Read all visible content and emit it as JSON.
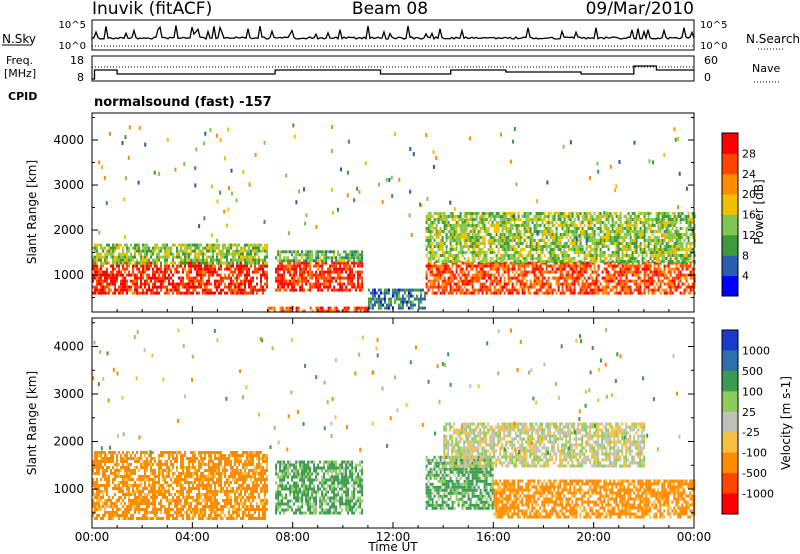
{
  "header": {
    "station": "Inuvik (fitACF)",
    "beam": "Beam 08",
    "date": "09/Mar/2010"
  },
  "sky_panel": {
    "left_label": "N.Sky",
    "right_label": "N.Search",
    "left_ticks": [
      "10^5",
      "10^0"
    ],
    "right_ticks": [
      "10^5",
      "10^0"
    ]
  },
  "freq_panel": {
    "left_label_line1": "Freq.",
    "left_label_line2": "[MHz]",
    "right_label": "Nave",
    "left_ticks": [
      "18",
      "8"
    ],
    "right_ticks": [
      "60",
      "0"
    ],
    "cpid_label": "CPID",
    "mode_text": "normalsound (fast) -157"
  },
  "x_axis": {
    "tick_labels": [
      "00:00",
      "04:00",
      "08:00",
      "12:00",
      "16:00",
      "20:00",
      "00:00"
    ],
    "title": "Time UT"
  },
  "power_panel": {
    "ylabel": "Slant Range [km]",
    "y_ticks": [
      "1000",
      "2000",
      "3000",
      "4000"
    ],
    "colorbar_title": "Power [dB]",
    "colorbar_labels": [
      "4",
      "8",
      "12",
      "16",
      "20",
      "24",
      "28"
    ],
    "colors": [
      "#0000ff",
      "#2a5db0",
      "#3c9a3c",
      "#7ec850",
      "#f0c000",
      "#ff8c00",
      "#ff4500",
      "#ff0000"
    ]
  },
  "velocity_panel": {
    "ylabel": "Slant Range [km]",
    "y_ticks": [
      "1000",
      "2000",
      "3000",
      "4000"
    ],
    "colorbar_title": "Velocity [m s-1]",
    "colorbar_labels": [
      "1000",
      "500",
      "100",
      "25",
      "-25",
      "-100",
      "-500",
      "-1000"
    ],
    "colors": [
      "#1a3acc",
      "#2e6fae",
      "#3a9a52",
      "#8ccc5a",
      "#c0c0b8",
      "#f5c040",
      "#ff8c00",
      "#ff4500",
      "#ff0000"
    ]
  },
  "chart_data": [
    {
      "type": "heatmap",
      "title": "",
      "xlabel": "Time UT",
      "ylabel": "Slant Range [km]",
      "xlim": [
        0,
        24
      ],
      "ylim": [
        180,
        4600
      ],
      "colorbar": "Power [dB]",
      "features": [
        {
          "t": [
            0.0,
            7.0
          ],
          "range": [
            600,
            1300
          ],
          "power": 28
        },
        {
          "t": [
            0.0,
            7.0
          ],
          "range": [
            1300,
            1700
          ],
          "power": 14
        },
        {
          "t": [
            7.3,
            10.8
          ],
          "range": [
            700,
            1300
          ],
          "power": 28
        },
        {
          "t": [
            7.3,
            10.8
          ],
          "range": [
            1300,
            1550
          ],
          "power": 12
        },
        {
          "t": [
            7.0,
            11.0
          ],
          "range": [
            180,
            300
          ],
          "power": 26
        },
        {
          "t": [
            11.0,
            13.3
          ],
          "range": [
            250,
            700
          ],
          "power": 8
        },
        {
          "t": [
            13.3,
            24.0
          ],
          "range": [
            600,
            1300
          ],
          "power": 26
        },
        {
          "t": [
            13.3,
            24.0
          ],
          "range": [
            1300,
            2400
          ],
          "power": 14
        }
      ]
    },
    {
      "type": "heatmap",
      "title": "",
      "xlabel": "Time UT",
      "ylabel": "Slant Range [km]",
      "xlim": [
        0,
        24
      ],
      "ylim": [
        180,
        4600
      ],
      "colorbar": "Velocity [m s-1]",
      "features": [
        {
          "t": [
            0.0,
            7.0
          ],
          "range": [
            400,
            1800
          ],
          "velocity": -200
        },
        {
          "t": [
            7.3,
            10.8
          ],
          "range": [
            500,
            1600
          ],
          "velocity": 150
        },
        {
          "t": [
            13.3,
            16.0
          ],
          "range": [
            600,
            1700
          ],
          "velocity": 150
        },
        {
          "t": [
            14.0,
            22.0
          ],
          "range": [
            1500,
            2400
          ],
          "velocity": 0
        },
        {
          "t": [
            16.0,
            24.0
          ],
          "range": [
            400,
            1200
          ],
          "velocity": -200
        }
      ]
    }
  ]
}
